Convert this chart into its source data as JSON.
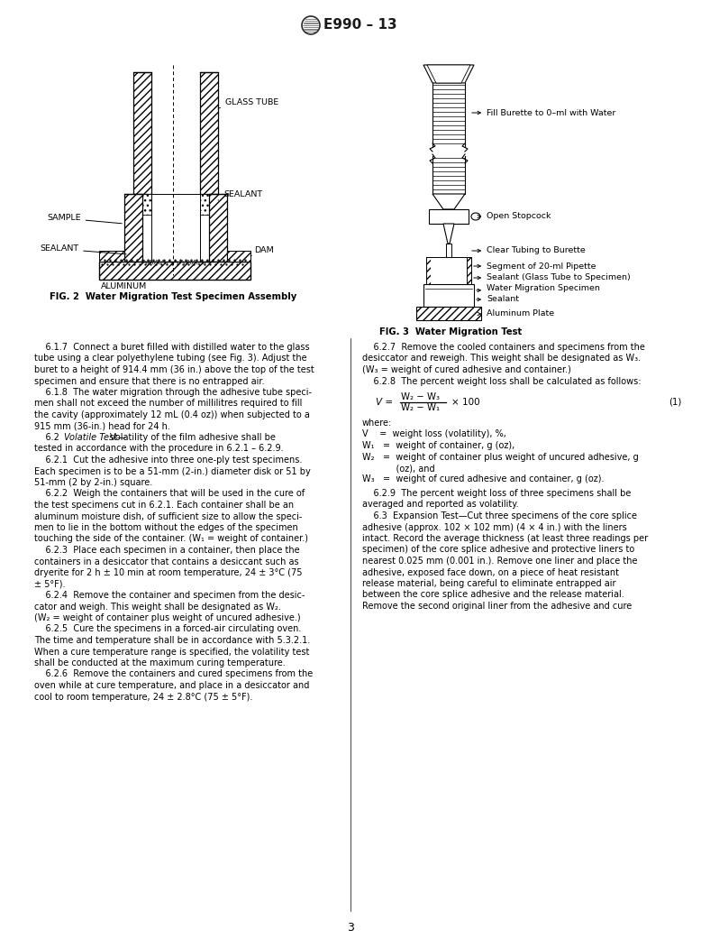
{
  "title": "E990 – 13",
  "page_number": "3",
  "bg_color": "#ffffff",
  "text_color": "#1a1a1a",
  "fig2_caption": "FIG. 2  Water Migration Test Specimen Assembly",
  "fig3_caption": "FIG. 3  Water Migration Test",
  "body_text_left": [
    "    6.1.7  Connect a buret filled with distilled water to the glass",
    "tube using a clear polyethylene tubing (see Fig. 3). Adjust the",
    "buret to a height of 914.4 mm (36 in.) above the top of the test",
    "specimen and ensure that there is no entrapped air.",
    "    6.1.8  The water migration through the adhesive tube speci-",
    "men shall not exceed the number of millilitres required to fill",
    "the cavity (approximately 12 mL (0.4 oz)) when subjected to a",
    "915 mm (36-in.) head for 24 h.",
    "    6.2  Volatile Test—Volatility of the film adhesive shall be",
    "tested in accordance with the procedure in 6.2.1 – 6.2.9.",
    "    6.2.1  Cut the adhesive into three one-ply test specimens.",
    "Each specimen is to be a 51-mm (2-in.) diameter disk or 51 by",
    "51-mm (2 by 2-in.) square.",
    "    6.2.2  Weigh the containers that will be used in the cure of",
    "the test specimens cut in 6.2.1. Each container shall be an",
    "aluminum moisture dish, of sufficient size to allow the speci-",
    "men to lie in the bottom without the edges of the specimen",
    "touching the side of the container. (W₁ = weight of container.)",
    "    6.2.3  Place each specimen in a container, then place the",
    "containers in a desiccator that contains a desiccant such as",
    "dryerite for 2 h ± 10 min at room temperature, 24 ± 3°C (75",
    "± 5°F).",
    "    6.2.4  Remove the container and specimen from the desic-",
    "cator and weigh. This weight shall be designated as W₂.",
    "(W₂ = weight of container plus weight of uncured adhesive.)",
    "    6.2.5  Cure the specimens in a forced-air circulating oven.",
    "The time and temperature shall be in accordance with 5.3.2.1.",
    "When a cure temperature range is specified, the volatility test",
    "shall be conducted at the maximum curing temperature.",
    "    6.2.6  Remove the containers and cured specimens from the",
    "oven while at cure temperature, and place in a desiccator and",
    "cool to room temperature, 24 ± 2.8°C (75 ± 5°F)."
  ],
  "body_text_right": [
    "    6.2.7  Remove the cooled containers and specimens from the",
    "desiccator and reweigh. This weight shall be designated as W₃.",
    "(W₃ = weight of cured adhesive and container.)",
    "    6.2.8  The percent weight loss shall be calculated as follows:"
  ],
  "where_text": [
    "where:",
    "V    =  weight loss (volatility), %,",
    "W₁   =  weight of container, g (oz),",
    "W₂   =  weight of container plus weight of uncured adhesive, g",
    "            (oz), and",
    "W₃   =  weight of cured adhesive and container, g (oz)."
  ],
  "body_text_right2": [
    "    6.2.9  The percent weight loss of three specimens shall be",
    "averaged and reported as volatility.",
    "    6.3  Expansion Test—Cut three specimens of the core splice",
    "adhesive (approx. 102 × 102 mm) (4 × 4 in.) with the liners",
    "intact. Record the average thickness (at least three readings per",
    "specimen) of the core splice adhesive and protective liners to",
    "nearest 0.025 mm (0.001 in.). Remove one liner and place the",
    "adhesive, exposed face down, on a piece of heat resistant",
    "release material, being careful to eliminate entrapped air",
    "between the core splice adhesive and the release material.",
    "Remove the second original liner from the adhesive and cure"
  ]
}
